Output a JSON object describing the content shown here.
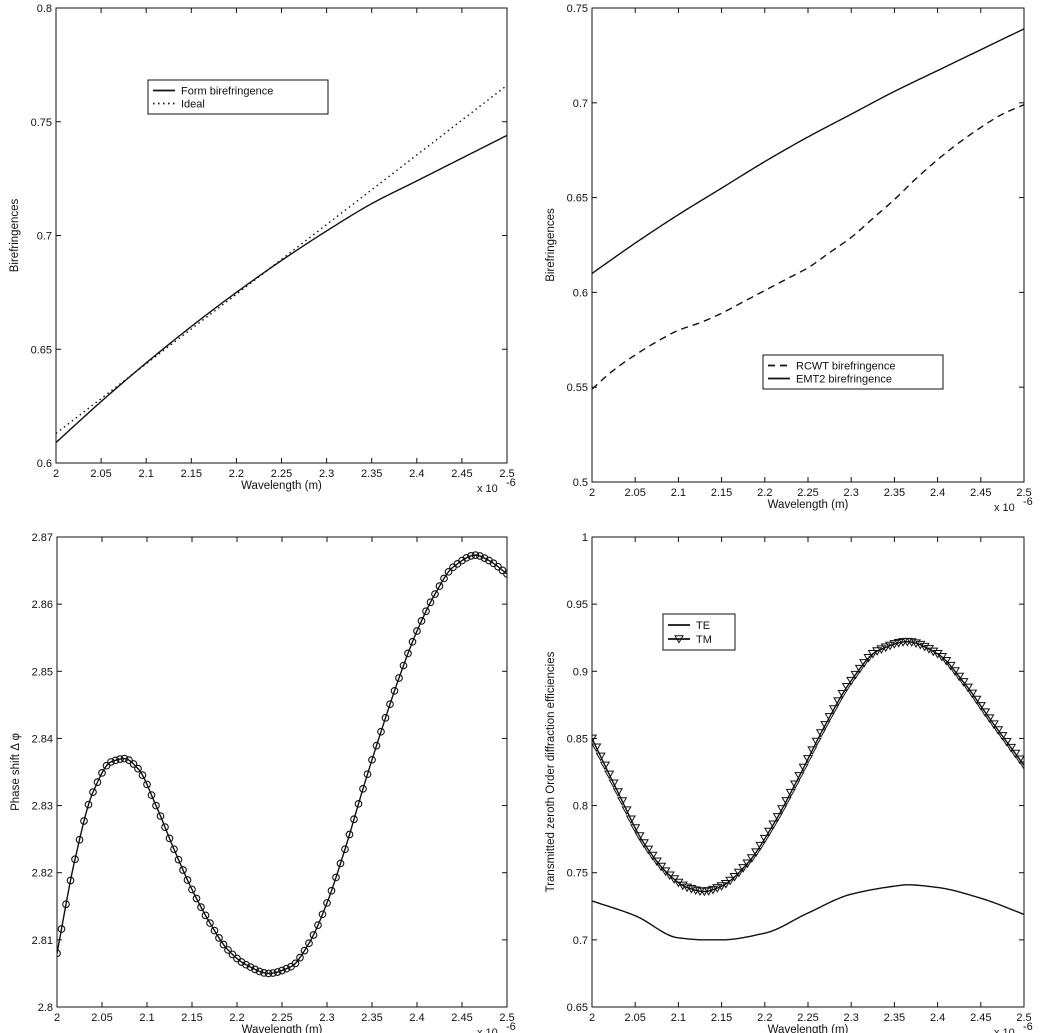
{
  "chart_data": [
    {
      "type": "line",
      "xlabel": "Wavelength (m)",
      "ylabel": "Birefringences",
      "x_multiplier_label": "x 10",
      "x_multiplier_exp": "-6",
      "xlim": [
        2.0,
        2.5
      ],
      "ylim": [
        0.6,
        0.8
      ],
      "xticks": [
        "2",
        "2.05",
        "2.1",
        "2.15",
        "2.2",
        "2.25",
        "2.3",
        "2.35",
        "2.4",
        "2.45",
        "2.5"
      ],
      "yticks": [
        "0.6",
        "0.65",
        "0.7",
        "0.75",
        "0.8"
      ],
      "legend_position": "top-center",
      "grid": false,
      "series": [
        {
          "name": "Form birefringence",
          "style": "solid",
          "x": [
            2.0,
            2.05,
            2.1,
            2.15,
            2.2,
            2.25,
            2.3,
            2.35,
            2.4,
            2.45,
            2.5
          ],
          "y": [
            0.609,
            0.627,
            0.644,
            0.66,
            0.675,
            0.689,
            0.702,
            0.714,
            0.724,
            0.734,
            0.744
          ]
        },
        {
          "name": "Ideal",
          "style": "dotted",
          "x": [
            2.0,
            2.5
          ],
          "y": [
            0.613,
            0.766
          ]
        }
      ]
    },
    {
      "type": "line",
      "xlabel": "Wavelength (m)",
      "ylabel": "Birefringences",
      "x_multiplier_label": "x 10",
      "x_multiplier_exp": "-6",
      "xlim": [
        2.0,
        2.5
      ],
      "ylim": [
        0.5,
        0.75
      ],
      "xticks": [
        "2",
        "2.05",
        "2.1",
        "2.15",
        "2.2",
        "2.25",
        "2.3",
        "2.35",
        "2.4",
        "2.45",
        "2.5"
      ],
      "yticks": [
        "0.5",
        "0.55",
        "0.6",
        "0.65",
        "0.7",
        "0.75"
      ],
      "legend_position": "bottom-right",
      "grid": false,
      "series": [
        {
          "name": "RCWT birefringence",
          "style": "dashed",
          "x": [
            2.0,
            2.025,
            2.05,
            2.075,
            2.1,
            2.125,
            2.15,
            2.175,
            2.2,
            2.225,
            2.25,
            2.275,
            2.3,
            2.325,
            2.35,
            2.375,
            2.4,
            2.425,
            2.45,
            2.475,
            2.5
          ],
          "y": [
            0.549,
            0.559,
            0.567,
            0.574,
            0.58,
            0.584,
            0.589,
            0.595,
            0.601,
            0.607,
            0.613,
            0.621,
            0.629,
            0.639,
            0.649,
            0.66,
            0.67,
            0.679,
            0.687,
            0.694,
            0.699
          ]
        },
        {
          "name": "EMT2 birefringence",
          "style": "solid",
          "x": [
            2.0,
            2.05,
            2.1,
            2.15,
            2.2,
            2.25,
            2.3,
            2.35,
            2.4,
            2.45,
            2.5
          ],
          "y": [
            0.61,
            0.626,
            0.641,
            0.655,
            0.669,
            0.682,
            0.694,
            0.706,
            0.717,
            0.728,
            0.739
          ]
        }
      ]
    },
    {
      "type": "line",
      "xlabel": "Wavelength (m)",
      "ylabel": "Phase shift Δ φ",
      "x_multiplier_label": "x 10",
      "x_multiplier_exp": "-6",
      "xlim": [
        2.0,
        2.5
      ],
      "ylim": [
        2.8,
        2.87
      ],
      "xticks": [
        "2",
        "2.05",
        "2.1",
        "2.15",
        "2.2",
        "2.25",
        "2.3",
        "2.35",
        "2.4",
        "2.45",
        "2.5"
      ],
      "yticks": [
        "2.8",
        "2.81",
        "2.82",
        "2.83",
        "2.84",
        "2.85",
        "2.86",
        "2.87"
      ],
      "grid": false,
      "markers": "circle",
      "sampling_step": 0.005,
      "series": [
        {
          "style": "solid-with-circle-markers",
          "x": [
            2.0,
            2.02,
            2.04,
            2.06,
            2.075,
            2.09,
            2.11,
            2.13,
            2.15,
            2.17,
            2.19,
            2.21,
            2.235,
            2.26,
            2.28,
            2.3,
            2.32,
            2.34,
            2.36,
            2.38,
            2.4,
            2.42,
            2.44,
            2.465,
            2.48,
            2.5
          ],
          "y": [
            2.808,
            2.822,
            2.832,
            2.8365,
            2.837,
            2.8355,
            2.83,
            2.8235,
            2.8175,
            2.8125,
            2.8085,
            2.8063,
            2.805,
            2.806,
            2.8095,
            2.8155,
            2.8235,
            2.8325,
            2.841,
            2.849,
            2.856,
            2.8615,
            2.8655,
            2.8673,
            2.8665,
            2.8645
          ]
        }
      ]
    },
    {
      "type": "line",
      "xlabel": "Wavelength (m)",
      "ylabel": "Transmitted zeroth Order diffraction efficiencies",
      "x_multiplier_label": "x 10",
      "x_multiplier_exp": "-6",
      "xlim": [
        2.0,
        2.5
      ],
      "ylim": [
        0.65,
        1.0
      ],
      "xticks": [
        "2",
        "2.05",
        "2.1",
        "2.15",
        "2.2",
        "2.25",
        "2.3",
        "2.35",
        "2.4",
        "2.45",
        "2.5"
      ],
      "yticks": [
        "0.65",
        "0.7",
        "0.75",
        "0.8",
        "0.85",
        "0.9",
        "0.95",
        "1"
      ],
      "legend_position": "top-left",
      "grid": false,
      "sampling_step": 0.005,
      "series": [
        {
          "name": "TE",
          "style": "solid",
          "x": [
            2.0,
            2.05,
            2.1,
            2.13,
            2.15,
            2.2,
            2.25,
            2.3,
            2.35,
            2.365,
            2.4,
            2.45,
            2.5
          ],
          "y": [
            0.729,
            0.718,
            0.7015,
            0.7,
            0.7,
            0.705,
            0.72,
            0.734,
            0.74,
            0.741,
            0.739,
            0.731,
            0.719
          ]
        },
        {
          "name": "TM",
          "style": "solid-with-triangle-markers",
          "x": [
            2.0,
            2.03,
            2.06,
            2.09,
            2.11,
            2.13,
            2.15,
            2.18,
            2.21,
            2.24,
            2.27,
            2.3,
            2.33,
            2.365,
            2.4,
            2.43,
            2.46,
            2.5
          ],
          "y": [
            0.85,
            0.81,
            0.772,
            0.748,
            0.739,
            0.736,
            0.74,
            0.757,
            0.786,
            0.822,
            0.86,
            0.893,
            0.915,
            0.922,
            0.913,
            0.892,
            0.865,
            0.83
          ]
        }
      ]
    }
  ]
}
